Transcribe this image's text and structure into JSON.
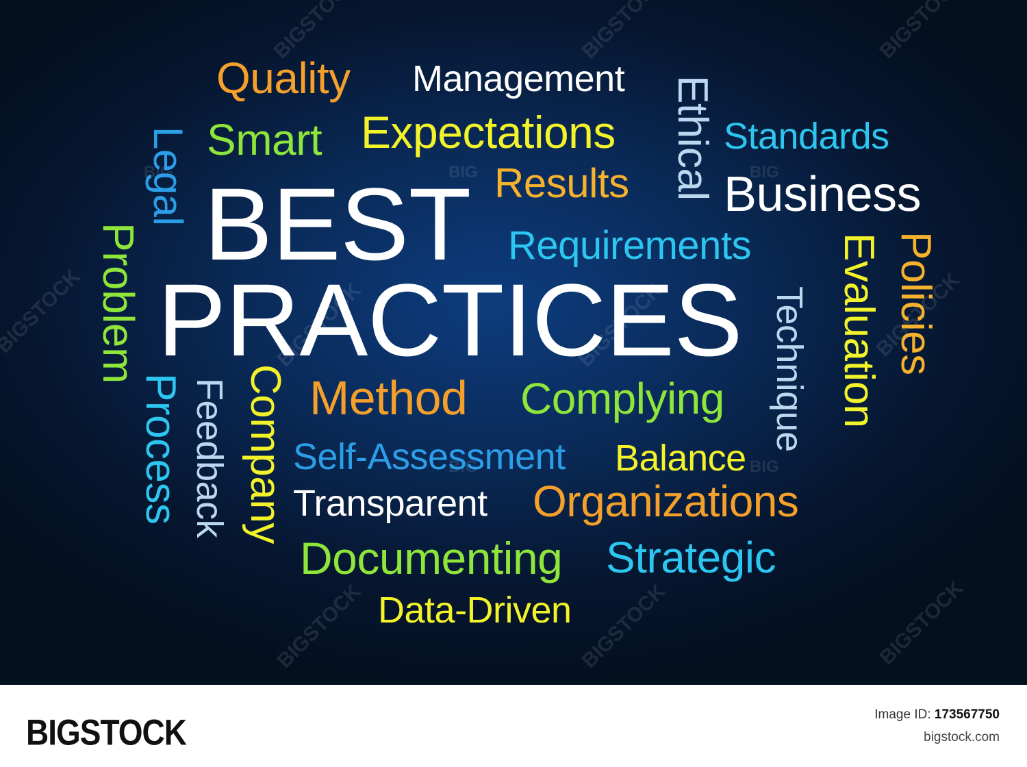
{
  "words": [
    {
      "text": "Quality",
      "color": "#f6a02c"
    },
    {
      "text": "Management",
      "color": "#ffffff"
    },
    {
      "text": "Smart",
      "color": "#8fe63a"
    },
    {
      "text": "Expectations",
      "color": "#f3f32a"
    },
    {
      "text": "Standards",
      "color": "#2cc6f0"
    },
    {
      "text": "Results",
      "color": "#f6b22c"
    },
    {
      "text": "Business",
      "color": "#ffffff"
    },
    {
      "text": "Ethical",
      "color": "#bcd8f0"
    },
    {
      "text": "Legal",
      "color": "#2c9ee8"
    },
    {
      "text": "BEST",
      "color": "#ffffff"
    },
    {
      "text": "Requirements",
      "color": "#2cc6f0"
    },
    {
      "text": "Evaluation",
      "color": "#f3f32a"
    },
    {
      "text": "Policies",
      "color": "#f6b22c"
    },
    {
      "text": "Problem",
      "color": "#8fe63a"
    },
    {
      "text": "PRACTICES",
      "color": "#ffffff"
    },
    {
      "text": "Technique",
      "color": "#bcd8f0"
    },
    {
      "text": "Process",
      "color": "#2cc6f0"
    },
    {
      "text": "Feedback",
      "color": "#bcd8f0"
    },
    {
      "text": "Company",
      "color": "#f3f32a"
    },
    {
      "text": "Method",
      "color": "#f6a02c"
    },
    {
      "text": "Complying",
      "color": "#8fe63a"
    },
    {
      "text": "Self-Assessment",
      "color": "#2c9ee8"
    },
    {
      "text": "Balance",
      "color": "#f3f32a"
    },
    {
      "text": "Transparent",
      "color": "#ffffff"
    },
    {
      "text": "Organizations",
      "color": "#f6a02c"
    },
    {
      "text": "Documenting",
      "color": "#8fe63a"
    },
    {
      "text": "Strategic",
      "color": "#2cc6f0"
    },
    {
      "text": "Data-Driven",
      "color": "#f3f32a"
    }
  ],
  "watermark": "BIGSTOCK",
  "watermark_small": "BIG",
  "footer": {
    "logo": "BIGSTOCK",
    "image_id_label": "Image ID:",
    "image_id": "173567750",
    "site": "bigstock.com"
  }
}
